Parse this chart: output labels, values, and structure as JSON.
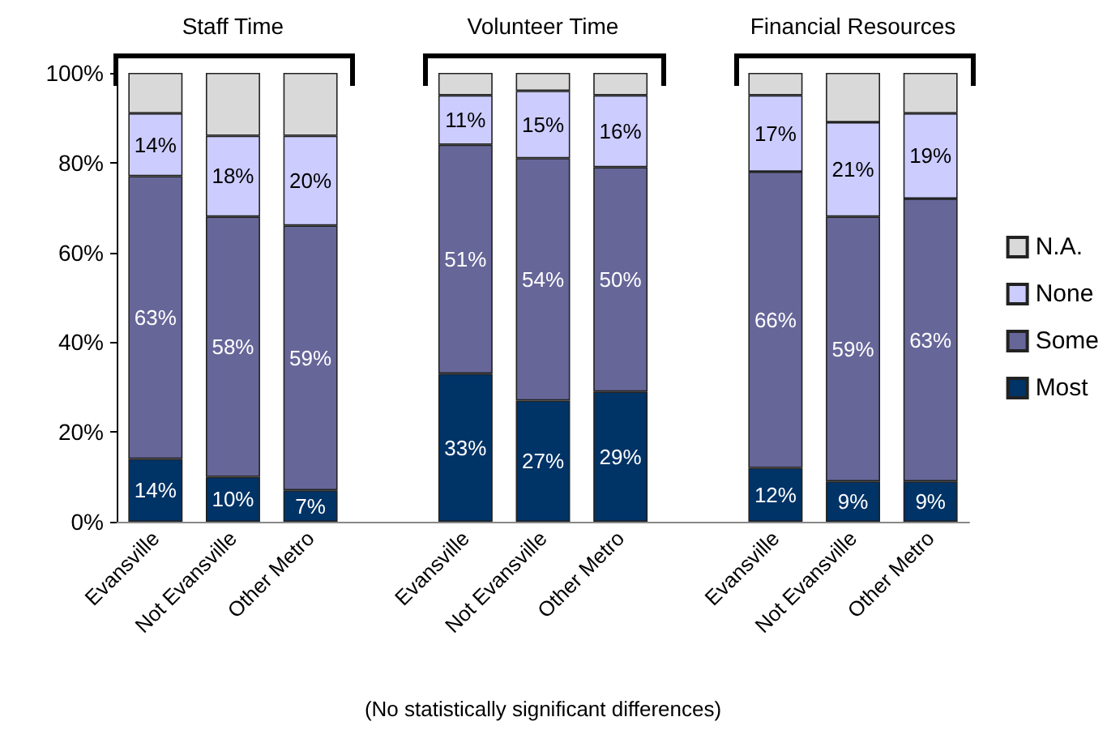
{
  "chart_data": {
    "type": "bar",
    "stacked": true,
    "categories": [
      "Evansville",
      "Not Evansville",
      "Other Metro",
      null,
      "Evansville",
      "Not Evansville",
      "Other Metro",
      null,
      "Evansville",
      "Not Evansville",
      "Other Metro"
    ],
    "series": [
      {
        "name": "Most",
        "color": "#003366",
        "values": [
          14,
          10,
          7,
          null,
          33,
          27,
          29,
          null,
          12,
          9,
          9
        ],
        "value_labels": [
          "14%",
          "10%",
          "7%",
          null,
          "33%",
          "27%",
          "29%",
          null,
          "12%",
          "9%",
          "9%"
        ]
      },
      {
        "name": "Some",
        "color": "#666699",
        "values": [
          63,
          58,
          59,
          null,
          51,
          54,
          50,
          null,
          66,
          59,
          63
        ],
        "value_labels": [
          "63%",
          "58%",
          "59%",
          null,
          "51%",
          "54%",
          "50%",
          null,
          "66%",
          "59%",
          "63%"
        ]
      },
      {
        "name": "None",
        "color": "#ccccff",
        "values": [
          14,
          18,
          20,
          null,
          11,
          15,
          16,
          null,
          17,
          21,
          19
        ],
        "value_labels": [
          "14%",
          "18%",
          "20%",
          null,
          "11%",
          "15%",
          "16%",
          null,
          "17%",
          "21%",
          "19%"
        ]
      },
      {
        "name": "N.A.",
        "color": "#d9d9d9",
        "values": [
          9,
          14,
          14,
          null,
          5,
          4,
          5,
          null,
          5,
          11,
          9
        ]
      }
    ],
    "ylim": [
      0,
      100
    ],
    "yticks": [
      {
        "value": 0,
        "label": "0%"
      },
      {
        "value": 20,
        "label": "20%"
      },
      {
        "value": 40,
        "label": "40%"
      },
      {
        "value": 60,
        "label": "60%"
      },
      {
        "value": 80,
        "label": "80%"
      },
      {
        "value": 100,
        "label": "100%"
      }
    ],
    "grid": false,
    "legend": "right",
    "annotations": [
      "Staff Time",
      "Volunteer Time",
      "Financial Resources",
      "(No statistically significant differences)"
    ]
  }
}
